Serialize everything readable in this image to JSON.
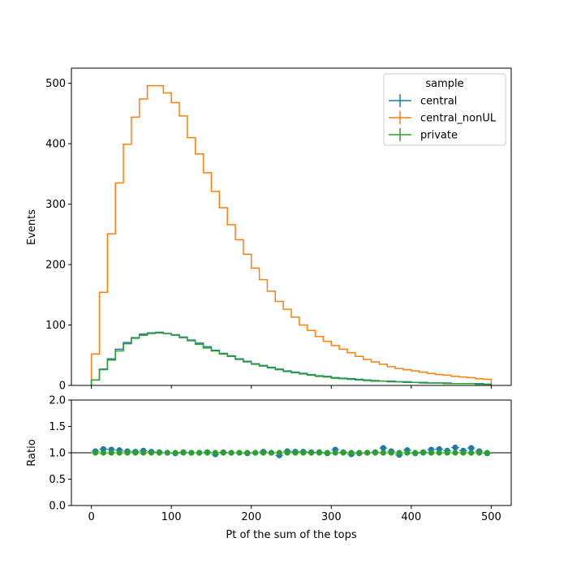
{
  "chart_data": [
    {
      "type": "line",
      "drawstyle": "steps",
      "ylabel": "Events",
      "xlim": [
        -25,
        525
      ],
      "ylim": [
        0,
        525
      ],
      "xticks": [
        0,
        100,
        200,
        300,
        400,
        500
      ],
      "yticks": [
        0,
        100,
        200,
        300,
        400,
        500
      ],
      "ytick_labels": [
        "0",
        "100",
        "200",
        "300",
        "400",
        "500"
      ],
      "bin_edges": [
        0,
        10,
        20,
        30,
        40,
        50,
        60,
        70,
        80,
        90,
        100,
        110,
        120,
        130,
        140,
        150,
        160,
        170,
        180,
        190,
        200,
        210,
        220,
        230,
        240,
        250,
        260,
        270,
        280,
        290,
        300,
        310,
        320,
        330,
        340,
        350,
        360,
        370,
        380,
        390,
        400,
        410,
        420,
        430,
        440,
        450,
        460,
        470,
        480,
        490,
        500
      ],
      "legend": {
        "title": "sample",
        "placement": "upper right"
      },
      "series": [
        {
          "name": "central",
          "color": "#1f77b4",
          "values": [
            9,
            27,
            44,
            60,
            71,
            79,
            85,
            87,
            88,
            86,
            84,
            80,
            75,
            70,
            64,
            58,
            53,
            49,
            44,
            40,
            36,
            33,
            30,
            27,
            24,
            22,
            20,
            18,
            16,
            15,
            13,
            12,
            11,
            10,
            9,
            8,
            7,
            7,
            6,
            6,
            5,
            5,
            4,
            4,
            4,
            3,
            3,
            3,
            3,
            2
          ]
        },
        {
          "name": "central_nonUL",
          "color": "#ff7f0e",
          "values": [
            52,
            154,
            251,
            335,
            399,
            444,
            474,
            496,
            496,
            484,
            468,
            446,
            410,
            383,
            352,
            321,
            294,
            266,
            241,
            217,
            194,
            175,
            156,
            139,
            126,
            113,
            100,
            91,
            81,
            73,
            66,
            60,
            54,
            48,
            43,
            39,
            35,
            31,
            28,
            26,
            24,
            22,
            20,
            18,
            17,
            15,
            14,
            13,
            11,
            10
          ]
        },
        {
          "name": "private",
          "color": "#2ca02c",
          "values": [
            9,
            26,
            42,
            57,
            69,
            78,
            83,
            86,
            87,
            86,
            83,
            79,
            74,
            68,
            62,
            57,
            52,
            48,
            43,
            39,
            35,
            32,
            29,
            26,
            23,
            21,
            19,
            17,
            15,
            14,
            12,
            11,
            10,
            9,
            8,
            7,
            7,
            6,
            6,
            5,
            5,
            4,
            4,
            4,
            3,
            3,
            3,
            3,
            2,
            2
          ]
        }
      ]
    },
    {
      "type": "scatter",
      "ylabel": "Ratio",
      "xlabel": "Pt of the sum of the tops",
      "xlim": [
        -25,
        525
      ],
      "ylim": [
        0,
        2
      ],
      "xticks": [
        0,
        100,
        200,
        300,
        400,
        500
      ],
      "xtick_labels": [
        "0",
        "100",
        "200",
        "300",
        "400",
        "500"
      ],
      "yticks": [
        0,
        0.5,
        1,
        1.5,
        2
      ],
      "ytick_labels": [
        "0.0",
        "0.5",
        "1.0",
        "1.5",
        "2.0"
      ],
      "reference_line": 1.0,
      "x": [
        5,
        15,
        25,
        35,
        45,
        55,
        65,
        75,
        85,
        95,
        105,
        115,
        125,
        135,
        145,
        155,
        165,
        175,
        185,
        195,
        205,
        215,
        225,
        235,
        245,
        255,
        265,
        275,
        285,
        295,
        305,
        315,
        325,
        335,
        345,
        355,
        365,
        375,
        385,
        395,
        405,
        415,
        425,
        435,
        445,
        455,
        465,
        475,
        485,
        495
      ],
      "series": [
        {
          "name": "central",
          "color": "#1f77b4",
          "values": [
            1.03,
            1.07,
            1.06,
            1.05,
            1.03,
            1.02,
            1.04,
            1.02,
            1.01,
            1.0,
            0.99,
            1.01,
            1.0,
            1.0,
            1.01,
            0.97,
            1.01,
            1.0,
            1.0,
            0.99,
            1.0,
            1.02,
            1.0,
            0.95,
            1.03,
            1.02,
            1.02,
            1.01,
            1.01,
            0.99,
            1.06,
            1.01,
            0.97,
            0.99,
            1.0,
            1.01,
            1.09,
            1.03,
            0.96,
            1.05,
            0.99,
            1.01,
            1.06,
            1.07,
            1.04,
            1.1,
            1.04,
            1.09,
            1.03,
            0.99
          ]
        },
        {
          "name": "private",
          "color": "#2ca02c",
          "values": [
            1,
            1,
            1,
            1,
            1,
            1,
            1,
            1,
            1,
            1,
            1,
            1,
            1,
            1,
            1,
            1,
            1,
            1,
            1,
            1,
            1,
            1,
            1,
            1,
            1,
            1,
            1,
            1,
            1,
            1,
            1,
            1,
            1,
            1,
            1,
            1,
            1,
            1,
            1,
            1,
            1,
            1,
            1,
            1,
            1,
            1,
            1,
            1,
            1,
            1
          ]
        }
      ]
    }
  ]
}
